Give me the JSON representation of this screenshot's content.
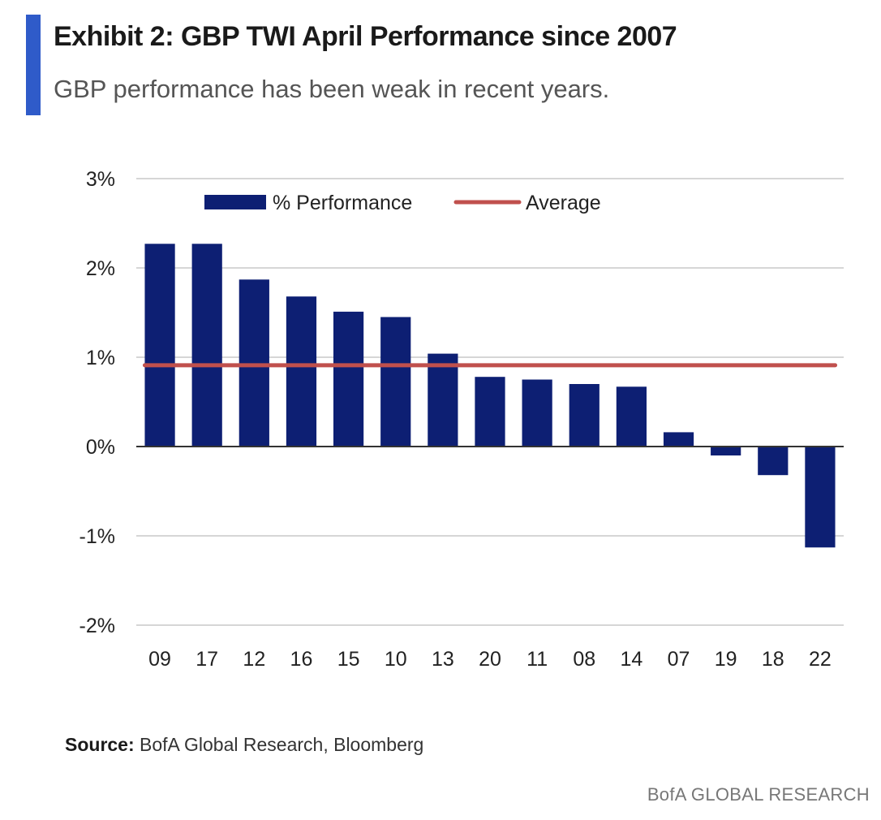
{
  "header": {
    "title": "Exhibit 2: GBP TWI April Performance since 2007",
    "subtitle": "GBP performance has been weak in recent years."
  },
  "footer": {
    "source_label": "Source:",
    "source_text": "BofA Global Research, Bloomberg",
    "brand": "BofA GLOBAL RESEARCH"
  },
  "colors": {
    "accent": "#2f5bc9",
    "bar": "#0d1f73",
    "average": "#c0504d",
    "grid": "#c8c8c8",
    "axis": "#333333"
  },
  "chart_data": {
    "type": "bar",
    "title": "Exhibit 2: GBP TWI April Performance since 2007",
    "subtitle": "GBP performance has been weak in recent years.",
    "categories": [
      "09",
      "17",
      "12",
      "16",
      "15",
      "10",
      "13",
      "20",
      "11",
      "08",
      "14",
      "07",
      "19",
      "18",
      "22"
    ],
    "series": [
      {
        "name": "% Performance",
        "type": "bar",
        "values": [
          2.27,
          2.27,
          1.87,
          1.68,
          1.51,
          1.45,
          1.04,
          0.78,
          0.75,
          0.7,
          0.67,
          0.16,
          -0.1,
          -0.32,
          -1.13
        ]
      },
      {
        "name": "Average",
        "type": "line",
        "value": 0.91
      }
    ],
    "ylim": [
      -2,
      3
    ],
    "yticks": [
      3,
      2,
      1,
      0,
      -1,
      -2
    ],
    "ytick_labels": [
      "3%",
      "2%",
      "1%",
      "0%",
      "-1%",
      "-2%"
    ],
    "xlabel": "",
    "ylabel": "",
    "grid": true,
    "legend_position": "top"
  }
}
